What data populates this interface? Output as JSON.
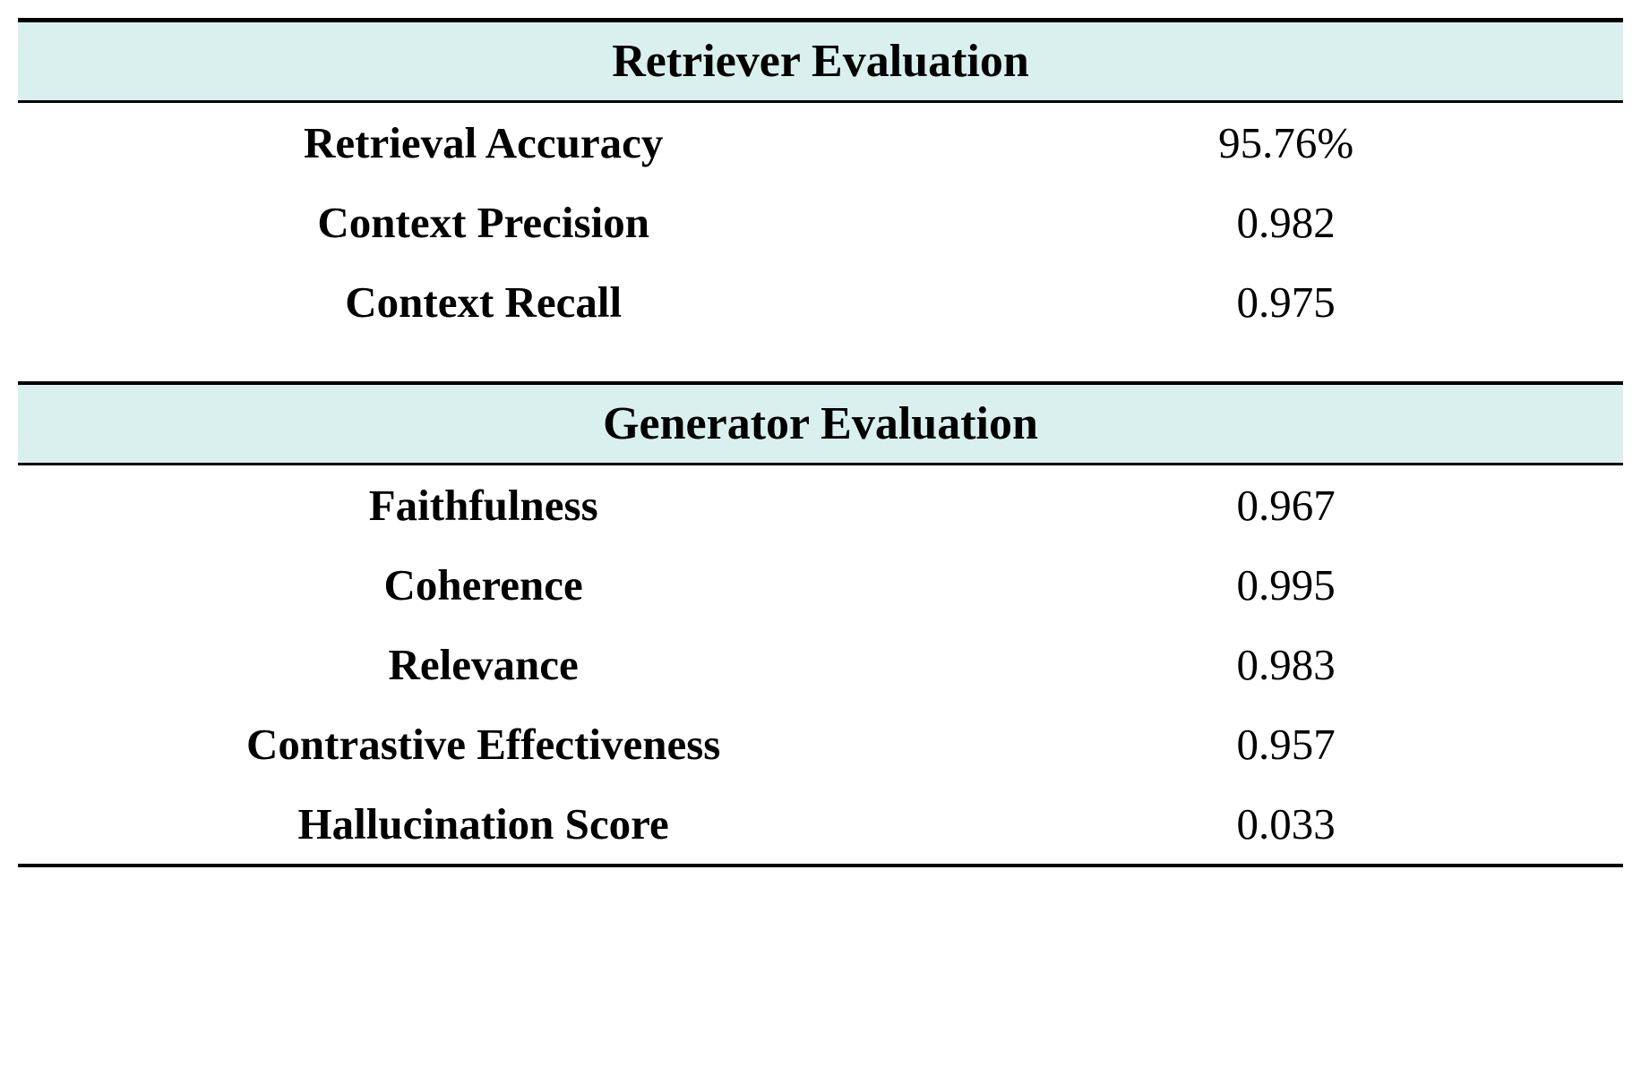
{
  "table": {
    "type": "table",
    "background_color": "#ffffff",
    "header_bg_color": "#daf0ee",
    "text_color": "#000000",
    "border_color": "#000000",
    "font_family": "Times New Roman",
    "header_fontsize": 52,
    "row_fontsize": 49,
    "label_font_weight": "bold",
    "value_font_weight": "normal",
    "sections": [
      {
        "title": "Retriever Evaluation",
        "rows": [
          {
            "label": "Retrieval Accuracy",
            "value": "95.76%"
          },
          {
            "label": "Context Precision",
            "value": "0.982"
          },
          {
            "label": "Context Recall",
            "value": "0.975"
          }
        ]
      },
      {
        "title": "Generator Evaluation",
        "rows": [
          {
            "label": "Faithfulness",
            "value": "0.967"
          },
          {
            "label": "Coherence",
            "value": "0.995"
          },
          {
            "label": "Relevance",
            "value": "0.983"
          },
          {
            "label": "Contrastive Effectiveness",
            "value": "0.957"
          },
          {
            "label": "Hallucination Score",
            "value": "0.033"
          }
        ]
      }
    ]
  }
}
